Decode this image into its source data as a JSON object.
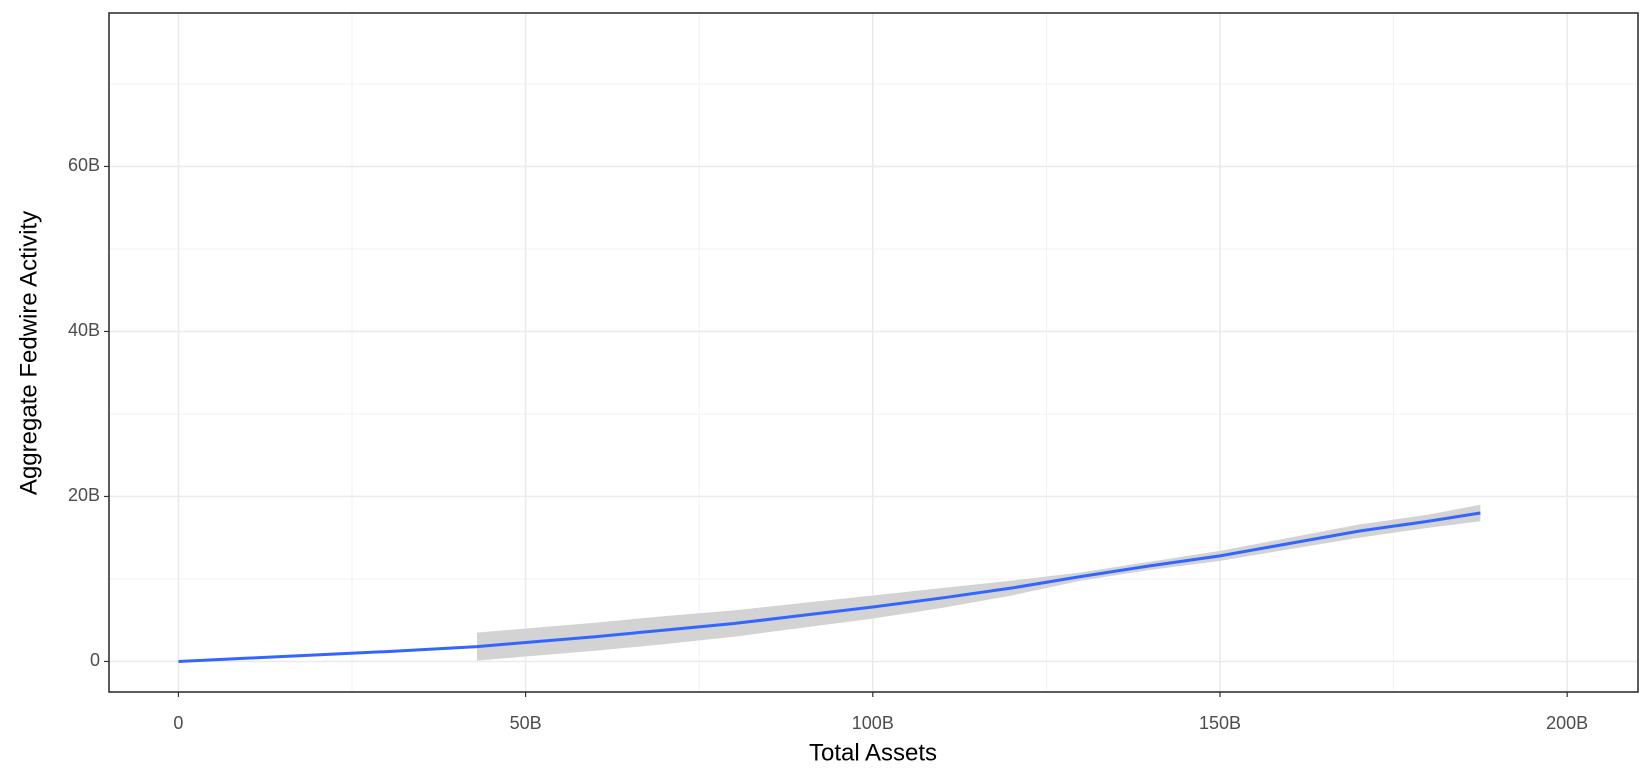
{
  "chart_data": {
    "type": "line",
    "x_label": "Total Assets",
    "y_label": "Aggregate Fedwire Activity",
    "x": [
      0,
      10000000000.0,
      20000000000.0,
      30000000000.0,
      43000000000.0,
      50000000000.0,
      60000000000.0,
      70000000000.0,
      80000000000.0,
      90000000000.0,
      100000000000.0,
      110000000000.0,
      120000000000.0,
      130000000000.0,
      140000000000.0,
      150000000000.0,
      160000000000.0,
      170000000000.0,
      180000000000.0,
      187500000000.0
    ],
    "series": [
      {
        "color": "#3366ff",
        "band_color": "#d3d3d3",
        "values": [
          0,
          400000000.0,
          800000000.0,
          1200000000.0,
          1800000000.0,
          2300000000.0,
          3000000000.0,
          3800000000.0,
          4600000000.0,
          5600000000.0,
          6600000000.0,
          7700000000.0,
          8900000000.0,
          10300000000.0,
          11600000000.0,
          12800000000.0,
          14300000000.0,
          15800000000.0,
          17000000000.0,
          18000000000.0
        ],
        "lower": [
          null,
          null,
          null,
          null,
          100000000.0,
          600000000.0,
          1300000000.0,
          2100000000.0,
          3000000000.0,
          4100000000.0,
          5200000000.0,
          6500000000.0,
          8000000000.0,
          9800000000.0,
          11100000000.0,
          12200000000.0,
          13600000000.0,
          15000000000.0,
          16200000000.0,
          17000000000.0
        ],
        "upper": [
          null,
          null,
          null,
          null,
          3500000000.0,
          4000000000.0,
          4700000000.0,
          5500000000.0,
          6200000000.0,
          7100000000.0,
          8000000000.0,
          8900000000.0,
          9800000000.0,
          10800000000.0,
          12100000000.0,
          13400000000.0,
          15000000000.0,
          16600000000.0,
          17800000000.0,
          19000000000.0
        ]
      }
    ],
    "xlim": [
      -10000000000.0,
      210200000000.0
    ],
    "ylim": [
      -3700000000.0,
      78600000000.0
    ],
    "xticks": [
      0,
      {
        "value": 50000000000.0,
        "label": "50B"
      },
      {
        "value": 100000000000.0,
        "label": "100B"
      },
      {
        "value": 150000000000.0,
        "label": "150B"
      },
      {
        "value": 200000000000.0,
        "label": "200B"
      }
    ],
    "yticks": [
      0,
      {
        "value": 20000000000.0,
        "label": "20B"
      },
      {
        "value": 40000000000.0,
        "label": "40B"
      },
      {
        "value": 60000000000.0,
        "label": "60B"
      }
    ],
    "x_minor_ticks": [
      25000000000.0,
      75000000000.0,
      125000000000.0,
      175000000000.0
    ],
    "y_minor_ticks": [
      10000000000.0,
      30000000000.0,
      50000000000.0,
      70000000000.0
    ],
    "grid": true
  }
}
